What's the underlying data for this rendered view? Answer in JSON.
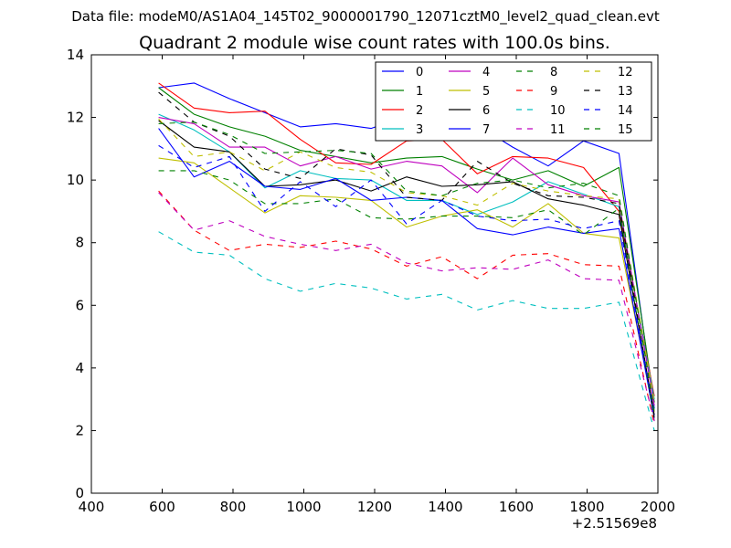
{
  "chart_data": {
    "type": "line",
    "suptitle": "Data file: modeM0/AS1A04_145T02_9000001790_12071cztM0_level2_quad_clean.evt",
    "title": "Quadrant 2 module wise count rates with 100.0s bins.",
    "xlabel": "",
    "ylabel": "",
    "x_offset_label": "+2.51569e8",
    "xlim": [
      400,
      2000
    ],
    "ylim": [
      0,
      14
    ],
    "xticks": [
      "400",
      "600",
      "800",
      "1000",
      "1200",
      "1400",
      "1600",
      "1800",
      "2000"
    ],
    "yticks": [
      "0",
      "2",
      "4",
      "6",
      "8",
      "10",
      "12",
      "14"
    ],
    "grid": false,
    "legend": {
      "position": "top-right",
      "columns": 4
    },
    "x": [
      590,
      690,
      790,
      890,
      990,
      1090,
      1190,
      1290,
      1390,
      1490,
      1590,
      1690,
      1790,
      1890,
      1990
    ],
    "series": [
      {
        "name": "0",
        "color": "#0000ff",
        "dash": "solid",
        "values": [
          12.95,
          13.1,
          12.6,
          12.15,
          11.7,
          11.8,
          11.65,
          12.05,
          11.7,
          11.75,
          11.05,
          10.45,
          11.25,
          10.85,
          2.7
        ]
      },
      {
        "name": "1",
        "color": "#008000",
        "dash": "solid",
        "values": [
          12.95,
          12.1,
          11.7,
          11.4,
          10.95,
          10.75,
          10.55,
          10.7,
          10.75,
          10.35,
          10.0,
          10.3,
          9.8,
          10.4,
          2.9
        ]
      },
      {
        "name": "2",
        "color": "#ff0000",
        "dash": "solid",
        "values": [
          13.1,
          12.3,
          12.15,
          12.2,
          11.3,
          10.55,
          10.5,
          11.25,
          11.3,
          10.2,
          10.75,
          10.7,
          10.4,
          9.0,
          3.1
        ]
      },
      {
        "name": "3",
        "color": "#00bfbf",
        "dash": "solid",
        "values": [
          12.1,
          11.6,
          10.9,
          9.75,
          10.3,
          10.05,
          10.0,
          9.35,
          9.35,
          8.9,
          9.3,
          9.95,
          9.55,
          9.15,
          3.0
        ]
      },
      {
        "name": "4",
        "color": "#bf00bf",
        "dash": "solid",
        "values": [
          12.0,
          11.8,
          11.05,
          11.05,
          10.45,
          10.75,
          10.35,
          10.6,
          10.45,
          9.6,
          10.7,
          9.85,
          9.5,
          9.3,
          2.8
        ]
      },
      {
        "name": "5",
        "color": "#bfbf00",
        "dash": "solid",
        "values": [
          10.7,
          10.55,
          9.75,
          8.95,
          9.5,
          9.45,
          9.35,
          8.5,
          8.85,
          9.05,
          8.5,
          9.25,
          8.3,
          8.15,
          2.6
        ]
      },
      {
        "name": "6",
        "color": "#000000",
        "dash": "solid",
        "values": [
          11.9,
          11.05,
          10.9,
          9.8,
          9.85,
          10.0,
          9.65,
          10.1,
          9.8,
          9.85,
          9.95,
          9.4,
          9.2,
          8.9,
          2.5
        ]
      },
      {
        "name": "7",
        "color": "#0000ff",
        "dash": "solid",
        "values": [
          11.65,
          10.1,
          10.6,
          9.8,
          9.7,
          10.05,
          9.35,
          9.45,
          9.35,
          8.45,
          8.25,
          8.5,
          8.3,
          8.45,
          2.4
        ]
      },
      {
        "name": "8",
        "color": "#008000",
        "dash": "dashed",
        "values": [
          10.3,
          10.3,
          10.0,
          9.25,
          9.25,
          9.4,
          8.8,
          8.75,
          8.85,
          8.85,
          8.8,
          9.05,
          8.25,
          9.1,
          2.3
        ]
      },
      {
        "name": "9",
        "color": "#ff0000",
        "dash": "dashed",
        "values": [
          9.65,
          8.4,
          7.75,
          7.95,
          7.85,
          8.05,
          7.8,
          7.25,
          7.55,
          6.85,
          7.6,
          7.65,
          7.3,
          7.25,
          2.2
        ]
      },
      {
        "name": "10",
        "color": "#00bfbf",
        "dash": "dashed",
        "values": [
          8.35,
          7.7,
          7.6,
          6.85,
          6.45,
          6.7,
          6.55,
          6.2,
          6.35,
          5.85,
          6.15,
          5.9,
          5.9,
          6.1,
          2.0
        ]
      },
      {
        "name": "11",
        "color": "#bf00bf",
        "dash": "dashed",
        "values": [
          9.6,
          8.4,
          8.7,
          8.2,
          7.95,
          7.75,
          7.95,
          7.35,
          7.1,
          7.2,
          7.15,
          7.45,
          6.85,
          6.8,
          2.3
        ]
      },
      {
        "name": "12",
        "color": "#bfbf00",
        "dash": "dashed",
        "values": [
          11.95,
          10.75,
          10.9,
          10.3,
          10.9,
          10.4,
          10.25,
          9.6,
          9.5,
          9.2,
          9.9,
          9.65,
          9.5,
          9.4,
          2.9
        ]
      },
      {
        "name": "13",
        "color": "#000000",
        "dash": "dashed",
        "values": [
          12.8,
          11.85,
          11.4,
          10.35,
          10.05,
          11.0,
          10.8,
          9.45,
          9.35,
          10.6,
          9.9,
          9.5,
          9.45,
          9.25,
          2.4
        ]
      },
      {
        "name": "14",
        "color": "#0000ff",
        "dash": "dashed",
        "values": [
          11.1,
          10.4,
          10.75,
          9.0,
          9.95,
          9.15,
          10.0,
          8.6,
          9.35,
          8.85,
          8.7,
          8.75,
          8.45,
          8.7,
          2.5
        ]
      },
      {
        "name": "15",
        "color": "#008000",
        "dash": "dashed",
        "values": [
          11.8,
          11.85,
          11.45,
          10.85,
          10.9,
          10.95,
          10.85,
          9.65,
          9.5,
          9.9,
          10.0,
          9.75,
          9.9,
          9.5,
          2.6
        ]
      }
    ]
  }
}
